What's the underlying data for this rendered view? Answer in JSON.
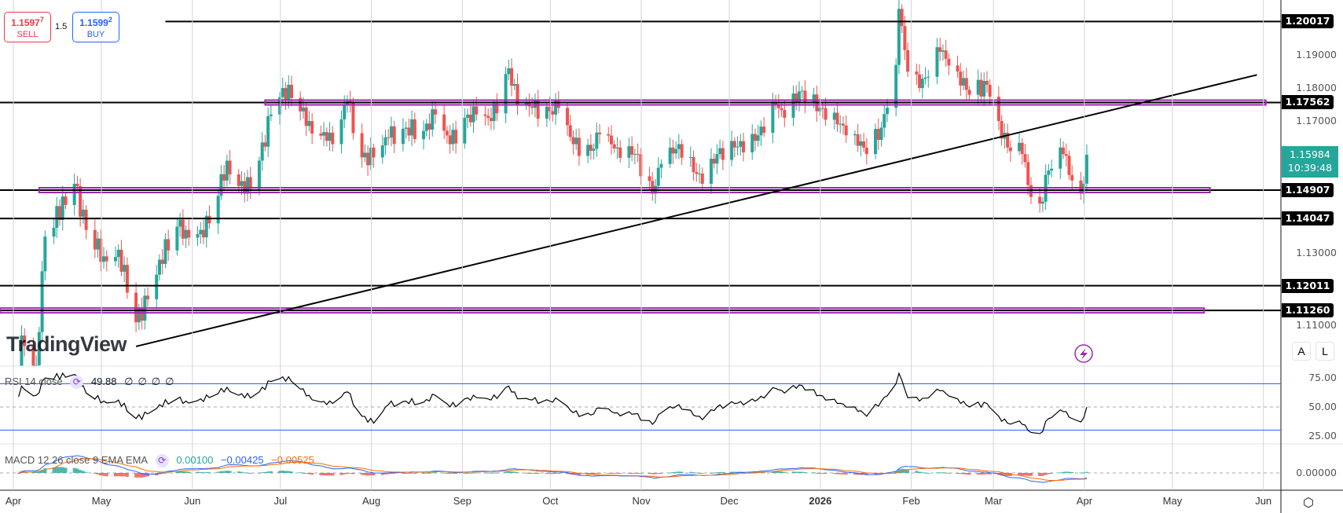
{
  "trade": {
    "sell_price": "1.1597",
    "sell_sup": "7",
    "sell_label": "SELL",
    "spread": "1.5",
    "buy_price": "1.1599",
    "buy_sup": "2",
    "buy_label": "BUY"
  },
  "colors": {
    "up": "#26a69a",
    "down": "#ef5350",
    "purple": "#9c27b0",
    "rsi_band": "#2962ff",
    "macd": "#2962ff",
    "signal": "#ff6d00"
  },
  "price_axis": {
    "ticks": [
      "1.19000",
      "1.18000",
      "1.17000",
      "1.13000",
      "1.11000"
    ],
    "levels": [
      {
        "label": "1.20017",
        "value": 1.20017
      },
      {
        "label": "1.17562",
        "value": 1.17562
      },
      {
        "label": "1.14907",
        "value": 1.14907
      },
      {
        "label": "1.14047",
        "value": 1.14047
      },
      {
        "label": "1.12011",
        "value": 1.12011
      },
      {
        "label": "1.11260",
        "value": 1.1126
      }
    ],
    "current_price": "1.15984",
    "countdown": "10:39:48",
    "scale_auto": "A",
    "scale_log": "L"
  },
  "rsi": {
    "label": "RSI 14 close",
    "value": "49.88",
    "extra": [
      "∅",
      "∅",
      "∅",
      "∅"
    ],
    "ticks": [
      "75.00",
      "50.00",
      "25.00"
    ]
  },
  "macd": {
    "label": "MACD 12 26 close 9 EMA EMA",
    "hist": "0.00100",
    "macd": "−0.00425",
    "signal": "−0.00525",
    "ticks": [
      "0.00000"
    ]
  },
  "watermark": "TradingView",
  "time_axis": [
    {
      "label": "Apr",
      "date": "2025-04-01"
    },
    {
      "label": "May",
      "date": "2025-05-01"
    },
    {
      "label": "Jun",
      "date": "2025-06-01"
    },
    {
      "label": "Jul",
      "date": "2025-07-01"
    },
    {
      "label": "Aug",
      "date": "2025-08-01"
    },
    {
      "label": "Sep",
      "date": "2025-09-01"
    },
    {
      "label": "Oct",
      "date": "2025-10-01"
    },
    {
      "label": "Nov",
      "date": "2025-11-01"
    },
    {
      "label": "Dec",
      "date": "2025-12-01"
    },
    {
      "label": "2026",
      "date": "2026-01-01"
    },
    {
      "label": "Feb",
      "date": "2026-02-01"
    },
    {
      "label": "Mar",
      "date": "2026-03-01"
    },
    {
      "label": "Apr",
      "date": "2026-04-01"
    },
    {
      "label": "May",
      "date": "2026-05-01"
    },
    {
      "label": "Jun",
      "date": "2026-06-01"
    }
  ],
  "chart_data": {
    "type": "candlestick",
    "symbol_timeframe": "1D",
    "ylim": [
      1.105,
      1.205
    ],
    "anchors": [
      [
        "2025-04-01",
        1.079,
        55
      ],
      [
        "2025-04-03",
        1.105,
        68
      ],
      [
        "2025-04-08",
        1.096,
        60
      ],
      [
        "2025-04-11",
        1.135,
        75
      ],
      [
        "2025-04-21",
        1.151,
        78
      ],
      [
        "2025-04-25",
        1.137,
        62
      ],
      [
        "2025-05-01",
        1.129,
        55
      ],
      [
        "2025-05-06",
        1.131,
        56
      ],
      [
        "2025-05-12",
        1.109,
        40
      ],
      [
        "2025-05-16",
        1.116,
        44
      ],
      [
        "2025-05-20",
        1.128,
        52
      ],
      [
        "2025-05-26",
        1.138,
        57
      ],
      [
        "2025-05-29",
        1.137,
        55
      ],
      [
        "2025-06-03",
        1.137,
        57
      ],
      [
        "2025-06-06",
        1.139,
        58
      ],
      [
        "2025-06-12",
        1.158,
        67
      ],
      [
        "2025-06-18",
        1.148,
        58
      ],
      [
        "2025-06-23",
        1.158,
        63
      ],
      [
        "2025-06-27",
        1.172,
        72
      ],
      [
        "2025-07-01",
        1.18,
        76
      ],
      [
        "2025-07-04",
        1.177,
        72
      ],
      [
        "2025-07-10",
        1.17,
        60
      ],
      [
        "2025-07-16",
        1.164,
        52
      ],
      [
        "2025-07-18",
        1.163,
        53
      ],
      [
        "2025-07-23",
        1.176,
        63
      ],
      [
        "2025-07-28",
        1.159,
        42
      ],
      [
        "2025-08-01",
        1.159,
        36
      ],
      [
        "2025-08-06",
        1.165,
        52
      ],
      [
        "2025-08-12",
        1.168,
        55
      ],
      [
        "2025-08-18",
        1.167,
        54
      ],
      [
        "2025-08-22",
        1.172,
        60
      ],
      [
        "2025-08-27",
        1.163,
        50
      ],
      [
        "2025-09-01",
        1.171,
        57
      ],
      [
        "2025-09-05",
        1.172,
        58
      ],
      [
        "2025-09-10",
        1.17,
        56
      ],
      [
        "2025-09-16",
        1.186,
        68
      ],
      [
        "2025-09-19",
        1.175,
        57
      ],
      [
        "2025-09-24",
        1.174,
        56
      ],
      [
        "2025-09-30",
        1.173,
        55
      ],
      [
        "2025-10-03",
        1.174,
        56
      ],
      [
        "2025-10-08",
        1.163,
        45
      ],
      [
        "2025-10-14",
        1.161,
        43
      ],
      [
        "2025-10-17",
        1.166,
        49
      ],
      [
        "2025-10-23",
        1.162,
        45
      ],
      [
        "2025-10-29",
        1.16,
        44
      ],
      [
        "2025-11-04",
        1.148,
        35
      ],
      [
        "2025-11-07",
        1.157,
        45
      ],
      [
        "2025-11-13",
        1.163,
        52
      ],
      [
        "2025-11-19",
        1.154,
        42
      ],
      [
        "2025-11-21",
        1.151,
        39
      ],
      [
        "2025-11-26",
        1.16,
        50
      ],
      [
        "2025-12-02",
        1.162,
        53
      ],
      [
        "2025-12-09",
        1.164,
        55
      ],
      [
        "2025-12-16",
        1.175,
        66
      ],
      [
        "2025-12-19",
        1.171,
        62
      ],
      [
        "2025-12-24",
        1.179,
        69
      ],
      [
        "2025-12-31",
        1.174,
        60
      ],
      [
        "2026-01-06",
        1.169,
        53
      ],
      [
        "2026-01-12",
        1.166,
        50
      ],
      [
        "2026-01-16",
        1.16,
        42
      ],
      [
        "2026-01-21",
        1.168,
        55
      ],
      [
        "2026-01-26",
        1.187,
        70
      ],
      [
        "2026-01-27",
        1.204,
        79
      ],
      [
        "2026-01-30",
        1.185,
        58
      ],
      [
        "2026-02-03",
        1.18,
        55
      ],
      [
        "2026-02-10",
        1.191,
        64
      ],
      [
        "2026-02-16",
        1.185,
        57
      ],
      [
        "2026-02-20",
        1.178,
        50
      ],
      [
        "2026-02-26",
        1.181,
        53
      ],
      [
        "2026-03-02",
        1.17,
        42
      ],
      [
        "2026-03-05",
        1.162,
        36
      ],
      [
        "2026-03-10",
        1.16,
        35
      ],
      [
        "2026-03-13",
        1.147,
        28
      ],
      [
        "2026-03-16",
        1.145,
        27
      ],
      [
        "2026-03-19",
        1.155,
        40
      ],
      [
        "2026-03-24",
        1.16,
        46
      ],
      [
        "2026-03-27",
        1.152,
        40
      ],
      [
        "2026-03-30",
        1.148,
        37
      ],
      [
        "2026-04-01",
        1.1598,
        49.88
      ]
    ],
    "anchor_fields": [
      "date",
      "close",
      "rsi"
    ],
    "horizontal_lines": [
      {
        "value": 1.20017,
        "from": "2025-05-22",
        "style": "black"
      },
      {
        "value": 1.17562,
        "from": null,
        "style": "black"
      },
      {
        "value": 1.17562,
        "from": "2025-06-25",
        "to": "2026-06-01",
        "style": "purple-band"
      },
      {
        "value": 1.14907,
        "from": null,
        "style": "black"
      },
      {
        "value": 1.14907,
        "from": "2025-04-09",
        "to": "2026-05-13",
        "style": "purple-band"
      },
      {
        "value": 1.14047,
        "from": null,
        "style": "black"
      },
      {
        "value": 1.12011,
        "from": null,
        "style": "black"
      },
      {
        "value": 1.1126,
        "from": null,
        "style": "black"
      },
      {
        "value": 1.1126,
        "from": null,
        "to": "2026-05-11",
        "style": "purple-band"
      }
    ],
    "trend_line": {
      "from": [
        "2025-05-12",
        1.1017
      ],
      "to": [
        "2026-05-29",
        1.184
      ]
    },
    "rsi_bands": [
      70,
      30
    ],
    "rsi_ylim": [
      20,
      85
    ]
  }
}
